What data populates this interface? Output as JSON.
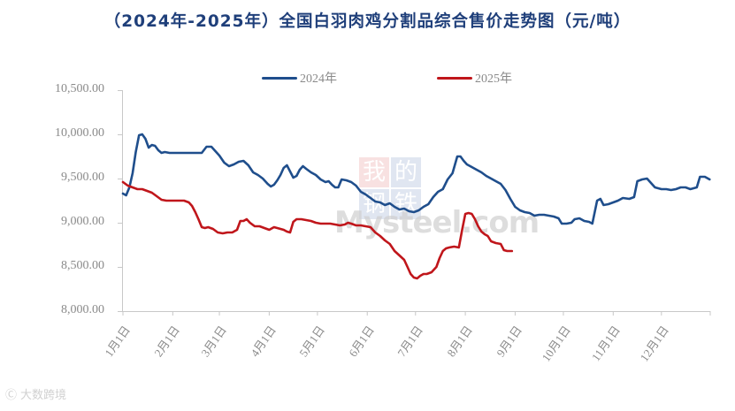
{
  "title": "（2024年-2025年）全国白羽肉鸡分割品综合售价走势图（元/吨）",
  "legend": [
    {
      "label": "2024年",
      "color": "#1f4e8c"
    },
    {
      "label": "2025年",
      "color": "#c0161b"
    }
  ],
  "y_ticks": [
    "10,500.00",
    "10,000.00",
    "9,500.00",
    "9,000.00",
    "8,500.00",
    "8,000.00"
  ],
  "x_ticks": [
    "1月1日",
    "2月1日",
    "3月1日",
    "4月1日",
    "5月1日",
    "6月1日",
    "7月1日",
    "8月1日",
    "9月1日",
    "10月1日",
    "11月1日",
    "12月1日"
  ],
  "watermark": {
    "center_cn": [
      "我",
      "的",
      "钢",
      "铁"
    ],
    "center_en": "Mysteel.com",
    "bottom_left": "大数跨境"
  },
  "chart_data": {
    "type": "line",
    "title": "（2024年-2025年）全国白羽肉鸡分割品综合售价走势图（元/吨）",
    "xlabel": "",
    "ylabel": "元/吨",
    "ylim": [
      8000,
      10500
    ],
    "y_tick_step": 500,
    "grid": false,
    "legend_position": "top",
    "categories": [
      "1月1日",
      "2月1日",
      "3月1日",
      "4月1日",
      "5月1日",
      "6月1日",
      "7月1日",
      "8月1日",
      "9月1日",
      "10月1日",
      "11月1日",
      "12月1日"
    ],
    "series": [
      {
        "name": "2024年",
        "color": "#1f4e8c",
        "points_day_value": [
          [
            1,
            9330
          ],
          [
            3,
            9310
          ],
          [
            5,
            9400
          ],
          [
            7,
            9560
          ],
          [
            9,
            9800
          ],
          [
            11,
            9990
          ],
          [
            13,
            10000
          ],
          [
            15,
            9950
          ],
          [
            17,
            9850
          ],
          [
            19,
            9880
          ],
          [
            21,
            9870
          ],
          [
            23,
            9820
          ],
          [
            25,
            9790
          ],
          [
            27,
            9800
          ],
          [
            30,
            9790
          ],
          [
            35,
            9790
          ],
          [
            40,
            9790
          ],
          [
            45,
            9790
          ],
          [
            50,
            9790
          ],
          [
            53,
            9860
          ],
          [
            56,
            9860
          ],
          [
            58,
            9820
          ],
          [
            61,
            9760
          ],
          [
            64,
            9680
          ],
          [
            67,
            9640
          ],
          [
            70,
            9660
          ],
          [
            73,
            9690
          ],
          [
            76,
            9700
          ],
          [
            79,
            9650
          ],
          [
            82,
            9570
          ],
          [
            85,
            9540
          ],
          [
            88,
            9500
          ],
          [
            91,
            9440
          ],
          [
            93,
            9410
          ],
          [
            95,
            9430
          ],
          [
            97,
            9480
          ],
          [
            99,
            9540
          ],
          [
            101,
            9620
          ],
          [
            103,
            9650
          ],
          [
            105,
            9580
          ],
          [
            107,
            9510
          ],
          [
            109,
            9530
          ],
          [
            111,
            9600
          ],
          [
            113,
            9640
          ],
          [
            115,
            9610
          ],
          [
            118,
            9570
          ],
          [
            121,
            9540
          ],
          [
            124,
            9490
          ],
          [
            127,
            9460
          ],
          [
            129,
            9470
          ],
          [
            131,
            9430
          ],
          [
            133,
            9400
          ],
          [
            135,
            9400
          ],
          [
            137,
            9490
          ],
          [
            140,
            9480
          ],
          [
            143,
            9460
          ],
          [
            146,
            9420
          ],
          [
            149,
            9350
          ],
          [
            152,
            9320
          ],
          [
            155,
            9280
          ],
          [
            158,
            9240
          ],
          [
            161,
            9230
          ],
          [
            164,
            9200
          ],
          [
            167,
            9220
          ],
          [
            170,
            9180
          ],
          [
            173,
            9150
          ],
          [
            176,
            9160
          ],
          [
            179,
            9130
          ],
          [
            182,
            9120
          ],
          [
            185,
            9140
          ],
          [
            188,
            9180
          ],
          [
            191,
            9210
          ],
          [
            194,
            9290
          ],
          [
            197,
            9350
          ],
          [
            200,
            9380
          ],
          [
            203,
            9490
          ],
          [
            206,
            9560
          ],
          [
            209,
            9750
          ],
          [
            211,
            9750
          ],
          [
            213,
            9700
          ],
          [
            215,
            9660
          ],
          [
            218,
            9630
          ],
          [
            221,
            9600
          ],
          [
            224,
            9570
          ],
          [
            227,
            9530
          ],
          [
            230,
            9500
          ],
          [
            233,
            9470
          ],
          [
            236,
            9440
          ],
          [
            239,
            9370
          ],
          [
            242,
            9270
          ],
          [
            245,
            9180
          ],
          [
            248,
            9140
          ],
          [
            251,
            9120
          ],
          [
            254,
            9110
          ],
          [
            257,
            9080
          ],
          [
            260,
            9090
          ],
          [
            263,
            9090
          ],
          [
            266,
            9080
          ],
          [
            269,
            9070
          ],
          [
            272,
            9050
          ],
          [
            274,
            8990
          ],
          [
            277,
            8990
          ],
          [
            280,
            9000
          ],
          [
            282,
            9040
          ],
          [
            285,
            9050
          ],
          [
            288,
            9020
          ],
          [
            291,
            9010
          ],
          [
            293,
            8990
          ],
          [
            296,
            9250
          ],
          [
            298,
            9270
          ],
          [
            300,
            9200
          ],
          [
            303,
            9210
          ],
          [
            306,
            9230
          ],
          [
            309,
            9250
          ],
          [
            312,
            9280
          ],
          [
            316,
            9270
          ],
          [
            319,
            9290
          ],
          [
            321,
            9470
          ],
          [
            324,
            9490
          ],
          [
            327,
            9500
          ],
          [
            329,
            9460
          ],
          [
            332,
            9400
          ],
          [
            336,
            9380
          ],
          [
            339,
            9380
          ],
          [
            342,
            9370
          ],
          [
            345,
            9380
          ],
          [
            348,
            9400
          ],
          [
            351,
            9400
          ],
          [
            354,
            9380
          ],
          [
            358,
            9400
          ],
          [
            360,
            9520
          ],
          [
            363,
            9520
          ],
          [
            366,
            9490
          ]
        ]
      },
      {
        "name": "2025年",
        "color": "#c0161b",
        "points_day_value": [
          [
            1,
            9460
          ],
          [
            4,
            9420
          ],
          [
            7,
            9400
          ],
          [
            10,
            9380
          ],
          [
            13,
            9380
          ],
          [
            16,
            9360
          ],
          [
            19,
            9340
          ],
          [
            22,
            9300
          ],
          [
            25,
            9260
          ],
          [
            28,
            9250
          ],
          [
            31,
            9250
          ],
          [
            35,
            9250
          ],
          [
            39,
            9250
          ],
          [
            42,
            9230
          ],
          [
            44,
            9190
          ],
          [
            46,
            9120
          ],
          [
            48,
            9040
          ],
          [
            50,
            8950
          ],
          [
            52,
            8940
          ],
          [
            54,
            8950
          ],
          [
            57,
            8930
          ],
          [
            60,
            8890
          ],
          [
            63,
            8880
          ],
          [
            66,
            8890
          ],
          [
            69,
            8890
          ],
          [
            72,
            8920
          ],
          [
            74,
            9020
          ],
          [
            76,
            9020
          ],
          [
            78,
            9040
          ],
          [
            80,
            9000
          ],
          [
            83,
            8960
          ],
          [
            86,
            8960
          ],
          [
            89,
            8940
          ],
          [
            92,
            8920
          ],
          [
            95,
            8950
          ],
          [
            97,
            8940
          ],
          [
            99,
            8930
          ],
          [
            101,
            8920
          ],
          [
            103,
            8900
          ],
          [
            105,
            8890
          ],
          [
            107,
            9010
          ],
          [
            109,
            9040
          ],
          [
            112,
            9040
          ],
          [
            115,
            9030
          ],
          [
            118,
            9020
          ],
          [
            121,
            9000
          ],
          [
            124,
            8990
          ],
          [
            127,
            8990
          ],
          [
            130,
            8990
          ],
          [
            133,
            8980
          ],
          [
            136,
            8970
          ],
          [
            139,
            8980
          ],
          [
            141,
            9000
          ],
          [
            143,
            8990
          ],
          [
            146,
            8970
          ],
          [
            149,
            8970
          ],
          [
            152,
            8960
          ],
          [
            155,
            8950
          ],
          [
            158,
            8890
          ],
          [
            161,
            8850
          ],
          [
            164,
            8800
          ],
          [
            167,
            8760
          ],
          [
            170,
            8680
          ],
          [
            173,
            8630
          ],
          [
            176,
            8580
          ],
          [
            178,
            8500
          ],
          [
            180,
            8420
          ],
          [
            182,
            8380
          ],
          [
            184,
            8370
          ],
          [
            186,
            8400
          ],
          [
            188,
            8420
          ],
          [
            190,
            8420
          ],
          [
            193,
            8440
          ],
          [
            196,
            8500
          ],
          [
            198,
            8600
          ],
          [
            200,
            8680
          ],
          [
            202,
            8710
          ],
          [
            204,
            8720
          ],
          [
            207,
            8730
          ],
          [
            210,
            8720
          ],
          [
            212,
            8920
          ],
          [
            214,
            9100
          ],
          [
            216,
            9110
          ],
          [
            218,
            9100
          ],
          [
            220,
            9040
          ],
          [
            222,
            8960
          ],
          [
            224,
            8900
          ],
          [
            226,
            8870
          ],
          [
            228,
            8850
          ],
          [
            230,
            8790
          ],
          [
            233,
            8770
          ],
          [
            236,
            8760
          ],
          [
            238,
            8690
          ],
          [
            240,
            8680
          ],
          [
            243,
            8680
          ]
        ]
      }
    ]
  }
}
